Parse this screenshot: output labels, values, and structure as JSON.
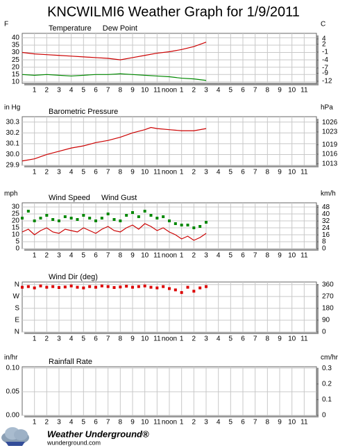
{
  "title": "KNCWILMI6 Weather Graph for 1/9/2011",
  "chart_data": [
    {
      "type": "line",
      "ylabel": "F",
      "y2label": "C",
      "xlim": [
        0,
        24
      ],
      "xticks": [
        1,
        2,
        3,
        4,
        5,
        6,
        7,
        8,
        9,
        10,
        11,
        {
          "value": 12,
          "label": "noon"
        },
        {
          "value": 13,
          "label": "1"
        },
        {
          "value": 14,
          "label": "2"
        },
        {
          "value": 15,
          "label": "3"
        },
        {
          "value": 16,
          "label": "4"
        },
        {
          "value": 17,
          "label": "5"
        },
        {
          "value": 18,
          "label": "6"
        },
        {
          "value": 19,
          "label": "7"
        },
        {
          "value": 20,
          "label": "8"
        },
        {
          "value": 21,
          "label": "9"
        },
        {
          "value": 22,
          "label": "10"
        },
        {
          "value": 23,
          "label": "11"
        }
      ],
      "ylim": [
        9,
        43
      ],
      "yticks": [
        10,
        15,
        20,
        25,
        30,
        35,
        40
      ],
      "y2lim": [
        -12.8,
        6.1
      ],
      "y2ticks": [
        -12,
        -9,
        -7,
        -4,
        -1,
        2,
        4
      ],
      "grid": true,
      "x": [
        0,
        1,
        2,
        3,
        4,
        5,
        6,
        7,
        8,
        9,
        10,
        11,
        12,
        13,
        14,
        15
      ],
      "series": [
        {
          "name": "Temperature",
          "color": "#cc0000",
          "values": [
            30,
            29,
            28.5,
            28,
            27.5,
            27,
            26.5,
            26,
            25,
            26.5,
            28,
            29.5,
            30.5,
            32,
            34,
            37
          ]
        },
        {
          "name": "Dew Point",
          "color": "#008800",
          "values": [
            15,
            14.5,
            15,
            14.5,
            14,
            14.5,
            15,
            15,
            15.5,
            15,
            14.5,
            14,
            13.5,
            12.5,
            12,
            11
          ]
        }
      ]
    },
    {
      "type": "line",
      "ylabel": "in Hg",
      "y2label": "hPa",
      "xlim": [
        0,
        24
      ],
      "xticks": [
        1,
        2,
        3,
        4,
        5,
        6,
        7,
        8,
        9,
        10,
        11,
        {
          "value": 12,
          "label": "noon"
        },
        {
          "value": 13,
          "label": "1"
        },
        {
          "value": 14,
          "label": "2"
        },
        {
          "value": 15,
          "label": "3"
        },
        {
          "value": 16,
          "label": "4"
        },
        {
          "value": 17,
          "label": "5"
        },
        {
          "value": 18,
          "label": "6"
        },
        {
          "value": 19,
          "label": "7"
        },
        {
          "value": 20,
          "label": "8"
        },
        {
          "value": 21,
          "label": "9"
        },
        {
          "value": 22,
          "label": "10"
        },
        {
          "value": 23,
          "label": "11"
        }
      ],
      "ylim": [
        29.9,
        30.35
      ],
      "yticks": [
        29.9,
        {
          "value": 30,
          "label": "30.0"
        },
        30.1,
        30.2,
        30.3
      ],
      "y2lim": [
        1012.5,
        1027.8
      ],
      "y2ticks": [
        1013,
        1016,
        1019,
        1023,
        1026
      ],
      "grid": true,
      "x": [
        0,
        1,
        2,
        3,
        4,
        5,
        6,
        7,
        8,
        9,
        10,
        10.5,
        11,
        12,
        13,
        14,
        15
      ],
      "series": [
        {
          "name": "Barometric Pressure",
          "color": "#cc0000",
          "values": [
            29.94,
            29.96,
            30.0,
            30.03,
            30.06,
            30.08,
            30.11,
            30.13,
            30.16,
            30.2,
            30.23,
            30.25,
            30.24,
            30.23,
            30.22,
            30.22,
            30.24
          ]
        }
      ]
    },
    {
      "type": "line",
      "ylabel": "mph",
      "y2label": "km/h",
      "xlim": [
        0,
        24
      ],
      "xticks": [
        1,
        2,
        3,
        4,
        5,
        6,
        7,
        8,
        9,
        10,
        11,
        {
          "value": 12,
          "label": "noon"
        },
        {
          "value": 13,
          "label": "1"
        },
        {
          "value": 14,
          "label": "2"
        },
        {
          "value": 15,
          "label": "3"
        },
        {
          "value": 16,
          "label": "4"
        },
        {
          "value": 17,
          "label": "5"
        },
        {
          "value": 18,
          "label": "6"
        },
        {
          "value": 19,
          "label": "7"
        },
        {
          "value": 20,
          "label": "8"
        },
        {
          "value": 21,
          "label": "9"
        },
        {
          "value": 22,
          "label": "10"
        },
        {
          "value": 23,
          "label": "11"
        }
      ],
      "ylim": [
        0,
        33
      ],
      "yticks": [
        0,
        5,
        10,
        15,
        20,
        25,
        30
      ],
      "y2lim": [
        0,
        53.1
      ],
      "y2ticks": [
        0,
        8,
        16,
        24,
        32,
        40,
        48
      ],
      "grid": true,
      "x": [
        0,
        0.5,
        1,
        1.5,
        2,
        2.5,
        3,
        3.5,
        4,
        4.5,
        5,
        5.5,
        6,
        6.5,
        7,
        7.5,
        8,
        8.5,
        9,
        9.5,
        10,
        10.5,
        11,
        11.5,
        12,
        12.5,
        13,
        13.5,
        14,
        14.5,
        15
      ],
      "series": [
        {
          "name": "Wind Speed",
          "color": "#cc0000",
          "values": [
            12,
            14,
            10,
            13,
            15,
            12,
            11,
            14,
            13,
            12,
            15,
            13,
            11,
            14,
            16,
            13,
            12,
            15,
            17,
            14,
            18,
            16,
            13,
            15,
            12,
            10,
            7,
            9,
            6,
            8,
            11
          ]
        },
        {
          "name": "Wind Gust",
          "color": "#008800",
          "marker": "square",
          "values": [
            22,
            27,
            20,
            22,
            24,
            21,
            20,
            23,
            22,
            21,
            24,
            22,
            20,
            22,
            25,
            21,
            20,
            24,
            26,
            23,
            27,
            24,
            22,
            23,
            20,
            18,
            17,
            17,
            15,
            16,
            19
          ]
        }
      ]
    },
    {
      "type": "scatter",
      "xlim": [
        0,
        24
      ],
      "xticks": [
        1,
        2,
        3,
        4,
        5,
        6,
        7,
        8,
        9,
        10,
        11,
        {
          "value": 12,
          "label": "noon"
        },
        {
          "value": 13,
          "label": "1"
        },
        {
          "value": 14,
          "label": "2"
        },
        {
          "value": 15,
          "label": "3"
        },
        {
          "value": 16,
          "label": "4"
        },
        {
          "value": 17,
          "label": "5"
        },
        {
          "value": 18,
          "label": "6"
        },
        {
          "value": 19,
          "label": "7"
        },
        {
          "value": 20,
          "label": "8"
        },
        {
          "value": 21,
          "label": "9"
        },
        {
          "value": 22,
          "label": "10"
        },
        {
          "value": 23,
          "label": "11"
        }
      ],
      "ylim": [
        0,
        380
      ],
      "yticks": [
        {
          "value": 0,
          "label": "N"
        },
        {
          "value": 90,
          "label": "E"
        },
        {
          "value": 180,
          "label": "S"
        },
        {
          "value": 270,
          "label": "W"
        },
        {
          "value": 360,
          "label": "N"
        }
      ],
      "y2lim": [
        0,
        380
      ],
      "y2ticks": [
        0,
        90,
        180,
        270,
        360
      ],
      "grid": true,
      "x": [
        0,
        0.5,
        1,
        1.5,
        2,
        2.5,
        3,
        3.5,
        4,
        4.5,
        5,
        5.5,
        6,
        6.5,
        7,
        7.5,
        8,
        8.5,
        9,
        9.5,
        10,
        10.5,
        11,
        11.5,
        12,
        12.5,
        13,
        13.5,
        14,
        14.5,
        15
      ],
      "series": [
        {
          "name": "Wind Dir (deg)",
          "color": "#dd0000",
          "values": [
            340,
            345,
            335,
            350,
            340,
            345,
            338,
            342,
            350,
            340,
            335,
            345,
            340,
            350,
            345,
            338,
            342,
            348,
            340,
            345,
            350,
            340,
            335,
            345,
            330,
            320,
            300,
            340,
            310,
            335,
            345
          ]
        }
      ]
    },
    {
      "type": "line",
      "ylabel": "in/hr",
      "y2label": "cm/hr",
      "xlim": [
        0,
        24
      ],
      "xticks": [
        1,
        2,
        3,
        4,
        5,
        6,
        7,
        8,
        9,
        10,
        11,
        {
          "value": 12,
          "label": "noon"
        },
        {
          "value": 13,
          "label": "1"
        },
        {
          "value": 14,
          "label": "2"
        },
        {
          "value": 15,
          "label": "3"
        },
        {
          "value": 16,
          "label": "4"
        },
        {
          "value": 17,
          "label": "5"
        },
        {
          "value": 18,
          "label": "6"
        },
        {
          "value": 19,
          "label": "7"
        },
        {
          "value": 20,
          "label": "8"
        },
        {
          "value": 21,
          "label": "9"
        },
        {
          "value": 22,
          "label": "10"
        },
        {
          "value": 23,
          "label": "11"
        }
      ],
      "ylim": [
        0,
        0.103
      ],
      "yticks": [
        {
          "value": 0,
          "label": "0.00"
        },
        0.05,
        {
          "value": 0.1,
          "label": "0.10"
        }
      ],
      "y2lim": [
        0,
        0.31
      ],
      "y2ticks": [
        0,
        0.1,
        0.2,
        0.3
      ],
      "grid": true,
      "x": [],
      "series": [
        {
          "name": "Rainfall Rate",
          "color": "#cc0000",
          "values": []
        }
      ]
    }
  ],
  "footer": {
    "brand": "Weather Underground®",
    "site": "wunderground.com"
  }
}
